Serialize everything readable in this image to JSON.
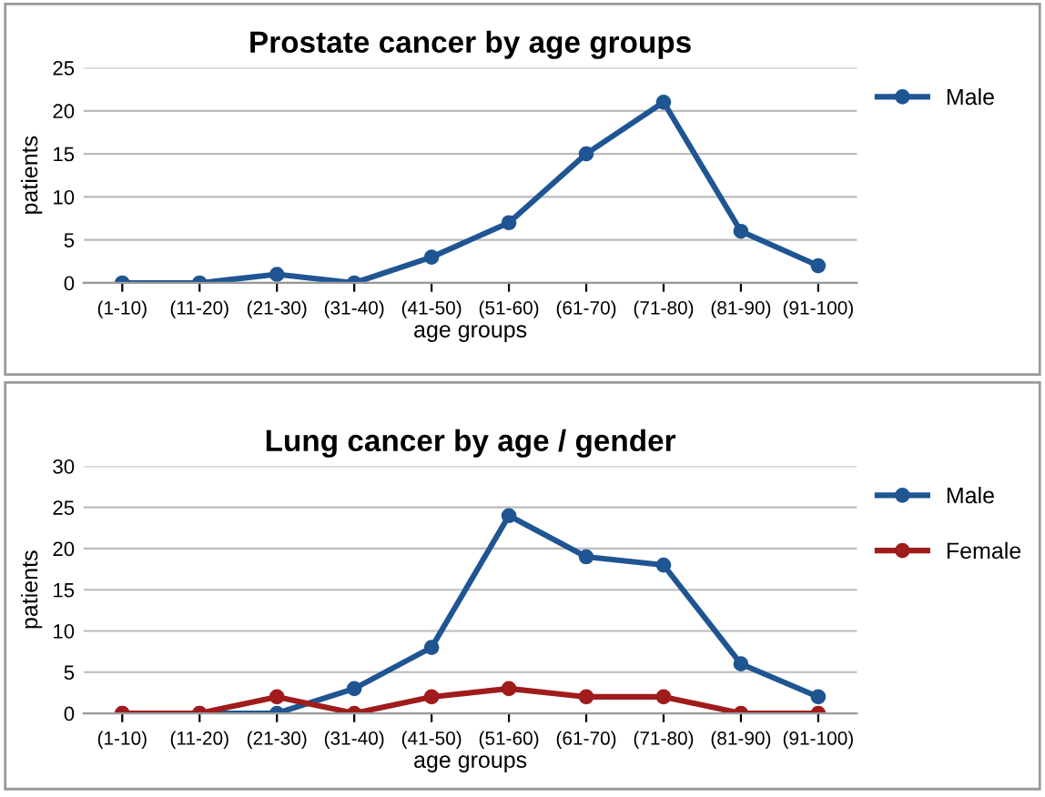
{
  "chart_data": [
    {
      "type": "line",
      "title": "Prostate cancer by age groups",
      "xlabel": "age groups",
      "ylabel": "patients",
      "categories": [
        "(1-10)",
        "(11-20)",
        "(21-30)",
        "(31-40)",
        "(41-50)",
        "(51-60)",
        "(61-70)",
        "(71-80)",
        "(81-90)",
        "(91-100)"
      ],
      "series": [
        {
          "name": "Male",
          "color": "#1f5592",
          "values": [
            0,
            0,
            1,
            0,
            3,
            7,
            15,
            21,
            6,
            2
          ]
        }
      ],
      "ylim": [
        0,
        25
      ],
      "yticks": [
        0,
        5,
        10,
        15,
        20,
        25
      ],
      "grid": "y",
      "legend": "top right",
      "marker": "circle",
      "line_style": "solid"
    },
    {
      "type": "line",
      "title": "Lung cancer by age / gender",
      "xlabel": "age groups",
      "ylabel": "patients",
      "categories": [
        "(1-10)",
        "(11-20)",
        "(21-30)",
        "(31-40)",
        "(41-50)",
        "(51-60)",
        "(61-70)",
        "(71-80)",
        "(81-90)",
        "(91-100)"
      ],
      "series": [
        {
          "name": "Male",
          "color": "#1f5592",
          "values": [
            0,
            0,
            0,
            3,
            8,
            24,
            19,
            18,
            6,
            2
          ]
        },
        {
          "name": "Female",
          "color": "#a01c1c",
          "values": [
            0,
            0,
            2,
            0,
            2,
            3,
            2,
            2,
            0,
            0
          ]
        }
      ],
      "ylim": [
        0,
        30
      ],
      "yticks": [
        0,
        5,
        10,
        15,
        20,
        25,
        30
      ],
      "grid": "y",
      "legend": "top right",
      "marker": "circle",
      "line_style": "solid"
    }
  ]
}
